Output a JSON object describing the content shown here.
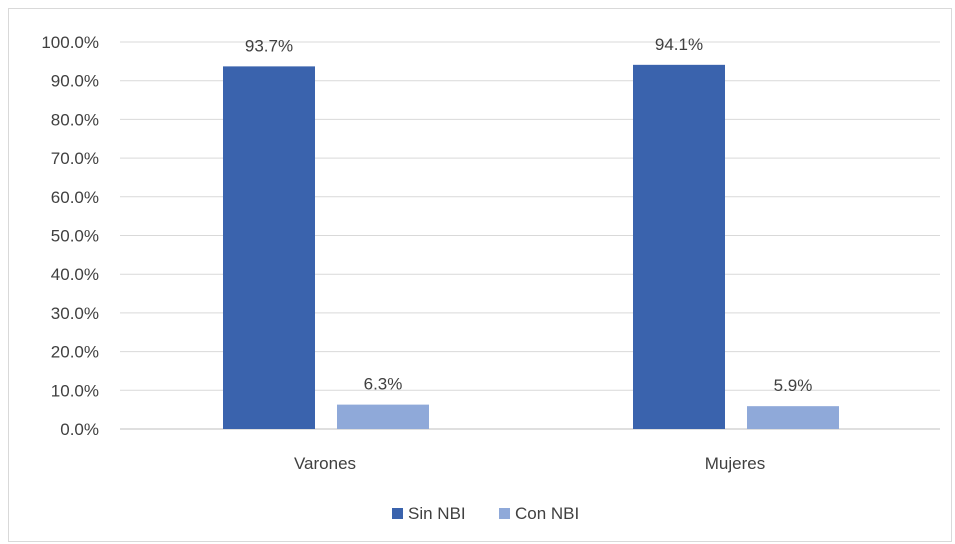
{
  "chart_data": {
    "type": "bar",
    "title": "",
    "xlabel": "",
    "ylabel": "",
    "categories": [
      "Varones",
      "Mujeres"
    ],
    "series": [
      {
        "name": "Sin NBI",
        "values": [
          93.7,
          94.1
        ],
        "labels": [
          "93.7%",
          "94.1%"
        ],
        "color": "#3a63ad"
      },
      {
        "name": "Con NBI",
        "values": [
          6.3,
          5.9
        ],
        "labels": [
          "6.3%",
          "5.9%"
        ],
        "color": "#8fa9d9"
      }
    ],
    "ylim": [
      0,
      100
    ],
    "yticks": [
      "0.0%",
      "10.0%",
      "20.0%",
      "30.0%",
      "40.0%",
      "50.0%",
      "60.0%",
      "70.0%",
      "80.0%",
      "90.0%",
      "100.0%"
    ],
    "grid": true,
    "legend": "bottom",
    "colors": {
      "gridline": "#d9d9d9",
      "axis": "#bfbfbf",
      "text": "#404040"
    }
  }
}
